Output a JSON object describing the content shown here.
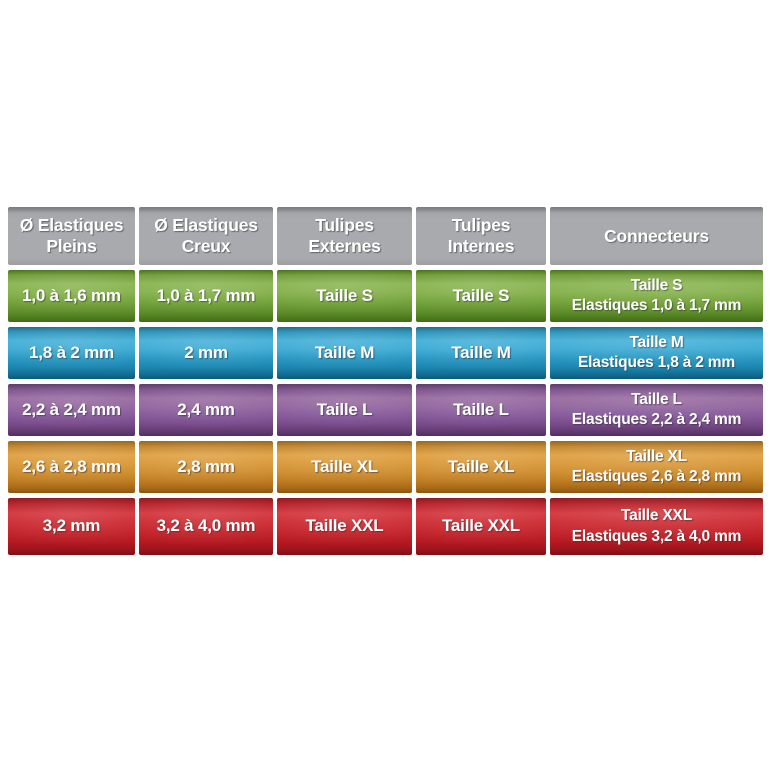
{
  "chart_data": {
    "type": "table",
    "columns": [
      "Ø Elastiques Pleins",
      "Ø Elastiques Creux",
      "Tulipes Externes",
      "Tulipes Internes",
      "Connecteurs"
    ],
    "rows": [
      {
        "color_name": "green",
        "row_color": "#76a53c",
        "elastiques_pleins": "1,0 à 1,6 mm",
        "elastiques_creux": "1,0 à 1,7 mm",
        "tulipes_externes": "Taille S",
        "tulipes_internes": "Taille S",
        "connecteurs_line1": "Taille S",
        "connecteurs_line2": "Elastiques 1,0 à 1,7 mm"
      },
      {
        "color_name": "blue",
        "row_color": "#2697c2",
        "elastiques_pleins": "1,8 à 2 mm",
        "elastiques_creux": "2 mm",
        "tulipes_externes": "Taille M",
        "tulipes_internes": "Taille M",
        "connecteurs_line1": "Taille M",
        "connecteurs_line2": "Elastiques 1,8 à 2 mm"
      },
      {
        "color_name": "purple",
        "row_color": "#85589a",
        "elastiques_pleins": "2,2 à 2,4 mm",
        "elastiques_creux": "2,4 mm",
        "tulipes_externes": "Taille L",
        "tulipes_internes": "Taille L",
        "connecteurs_line1": "Taille L",
        "connecteurs_line2": "Elastiques 2,2 à 2,4 mm"
      },
      {
        "color_name": "orange",
        "row_color": "#d28f2e",
        "elastiques_pleins": "2,6 à 2,8 mm",
        "elastiques_creux": "2,8 mm",
        "tulipes_externes": "Taille XL",
        "tulipes_internes": "Taille XL",
        "connecteurs_line1": "Taille XL",
        "connecteurs_line2": "Elastiques 2,6 à 2,8 mm"
      },
      {
        "color_name": "red",
        "row_color": "#c9242c",
        "elastiques_pleins": "3,2 mm",
        "elastiques_creux": "3,2 à 4,0 mm",
        "tulipes_externes": "Taille XXL",
        "tulipes_internes": "Taille XXL",
        "connecteurs_line1": "Taille XXL",
        "connecteurs_line2": "Elastiques 3,2 à 4,0 mm"
      }
    ],
    "layout": {
      "header_color": "#a8aaad",
      "text_color": "#ffffff",
      "background_color": "#ffffff",
      "gap_color": "#ffffff"
    }
  }
}
